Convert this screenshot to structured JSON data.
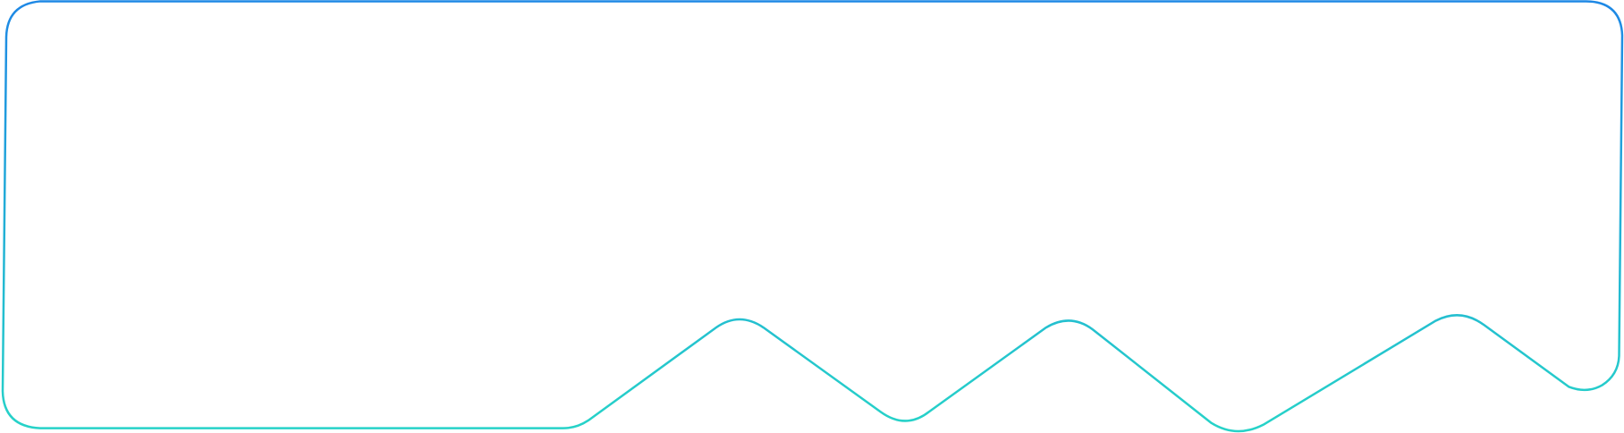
{
  "frame": {
    "gradient_top_color": "#1E88E5",
    "gradient_bottom_color": "#26D3C8",
    "background_color": "#FFFFFF"
  }
}
